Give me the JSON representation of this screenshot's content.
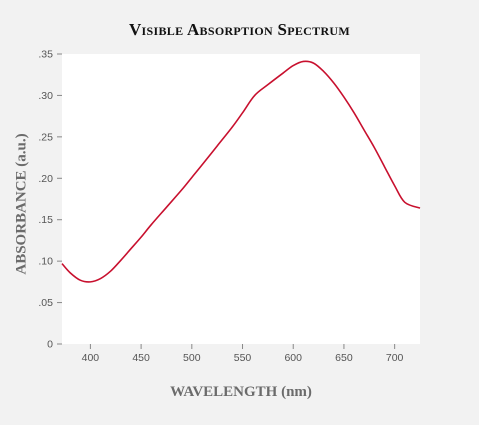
{
  "chart_data": {
    "type": "line",
    "title": "Visible Absorption Spectrum",
    "xlabel": "WAVELENGTH (nm)",
    "ylabel": "ABSORBANCE (a.u.)",
    "xlim": [
      372,
      725
    ],
    "ylim": [
      0,
      0.35
    ],
    "xticks": [
      400,
      450,
      500,
      550,
      600,
      650,
      700
    ],
    "xtick_labels": [
      "400",
      "450",
      "500",
      "550",
      "600",
      "650",
      "700"
    ],
    "yticks": [
      0,
      0.05,
      0.1,
      0.15,
      0.2,
      0.25,
      0.3,
      0.35
    ],
    "ytick_labels": [
      "0",
      ".05",
      ".10",
      ".15",
      ".20",
      ".25",
      ".30",
      ".35"
    ],
    "grid": false,
    "legend": false,
    "series": [
      {
        "color": "#c8102e",
        "x": [
          372,
          380,
          390,
          400,
          410,
          420,
          430,
          440,
          450,
          460,
          475,
          490,
          500,
          510,
          525,
          540,
          550,
          562,
          575,
          590,
          600,
          610,
          620,
          630,
          640,
          650,
          660,
          670,
          680,
          690,
          700,
          710,
          725
        ],
        "y": [
          0.097,
          0.086,
          0.077,
          0.075,
          0.079,
          0.088,
          0.101,
          0.115,
          0.129,
          0.144,
          0.165,
          0.186,
          0.201,
          0.216,
          0.239,
          0.262,
          0.279,
          0.3,
          0.313,
          0.327,
          0.336,
          0.341,
          0.339,
          0.329,
          0.315,
          0.298,
          0.279,
          0.258,
          0.237,
          0.214,
          0.191,
          0.171,
          0.164
        ]
      }
    ]
  }
}
